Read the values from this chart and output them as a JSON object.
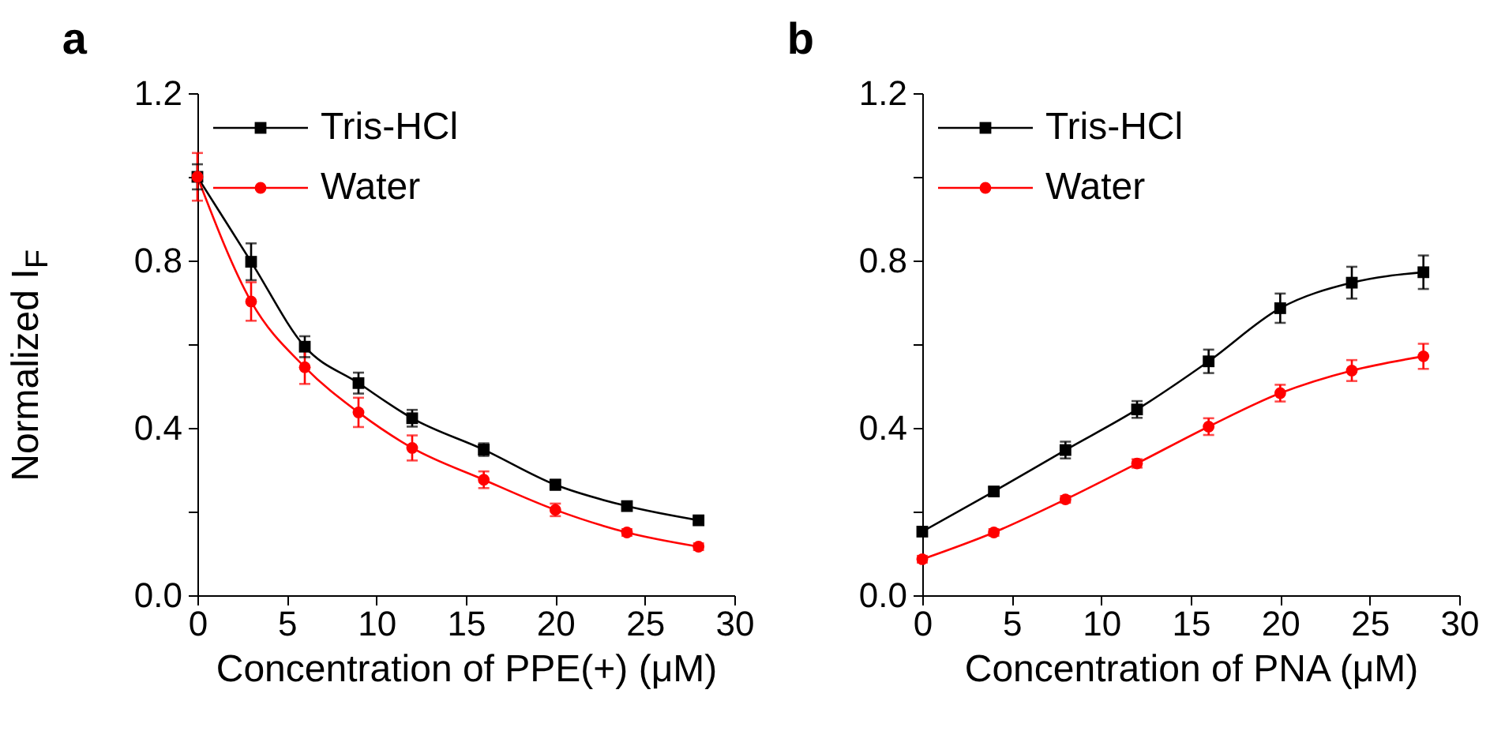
{
  "chart_data": [
    {
      "type": "line",
      "title": "a",
      "xlabel": "Concentration of PPE(+) (μM)",
      "ylabel": "Normalized I$_{F}$",
      "x": [
        0,
        3,
        6,
        9,
        12,
        16,
        20,
        24,
        28
      ],
      "series": [
        {
          "name": "Tris-HCl",
          "color": "#000000",
          "marker": "square",
          "values": [
            1.0,
            0.797,
            0.594,
            0.507,
            0.423,
            0.348,
            0.264,
            0.213,
            0.179
          ],
          "errors": [
            0.03,
            0.044,
            0.025,
            0.025,
            0.02,
            0.015,
            0.012,
            0.008,
            0.008
          ]
        },
        {
          "name": "Water",
          "color": "#ff0000",
          "marker": "circle",
          "values": [
            1.0,
            0.702,
            0.545,
            0.437,
            0.352,
            0.276,
            0.204,
            0.15,
            0.116
          ],
          "errors": [
            0.057,
            0.046,
            0.04,
            0.035,
            0.03,
            0.02,
            0.015,
            0.008,
            0.008
          ]
        }
      ],
      "xlim": [
        0,
        30
      ],
      "xticks": [
        0,
        5,
        10,
        15,
        20,
        25,
        30
      ],
      "ylim": [
        0,
        1.2
      ],
      "yticks": [
        {
          "value": 0,
          "label": "0.0"
        },
        {
          "value": 0.2,
          "label": null
        },
        {
          "value": 0.4,
          "label": "0.4"
        },
        {
          "value": 0.6,
          "label": null
        },
        {
          "value": 0.8,
          "label": "0.8"
        },
        {
          "value": 1.0,
          "label": null
        },
        {
          "value": 1.2,
          "label": "1.2"
        }
      ],
      "legend": "top left",
      "grid": false
    },
    {
      "type": "line",
      "title": "b",
      "xlabel": "Concentration of PNA (μM)",
      "x": [
        0,
        4,
        8,
        12,
        16,
        20,
        24,
        28
      ],
      "series": [
        {
          "name": "Tris-HCl",
          "color": "#000000",
          "marker": "square",
          "values": [
            0.152,
            0.248,
            0.347,
            0.444,
            0.559,
            0.686,
            0.747,
            0.772
          ],
          "errors": [
            0.01,
            0.01,
            0.02,
            0.02,
            0.028,
            0.035,
            0.038,
            0.04
          ]
        },
        {
          "name": "Water",
          "color": "#ff0000",
          "marker": "circle",
          "values": [
            0.086,
            0.15,
            0.229,
            0.315,
            0.403,
            0.483,
            0.537,
            0.571
          ],
          "errors": [
            0.008,
            0.008,
            0.008,
            0.01,
            0.02,
            0.02,
            0.025,
            0.03
          ]
        }
      ],
      "xlim": [
        0,
        30
      ],
      "xticks": [
        0,
        5,
        10,
        15,
        20,
        25,
        30
      ],
      "ylim": [
        0,
        1.2
      ],
      "yticks": [
        {
          "value": 0,
          "label": "0.0"
        },
        {
          "value": 0.2,
          "label": null
        },
        {
          "value": 0.4,
          "label": "0.4"
        },
        {
          "value": 0.6,
          "label": null
        },
        {
          "value": 0.8,
          "label": "0.8"
        },
        {
          "value": 1.0,
          "label": null
        },
        {
          "value": 1.2,
          "label": "1.2"
        }
      ],
      "legend": "top left",
      "grid": false
    }
  ]
}
